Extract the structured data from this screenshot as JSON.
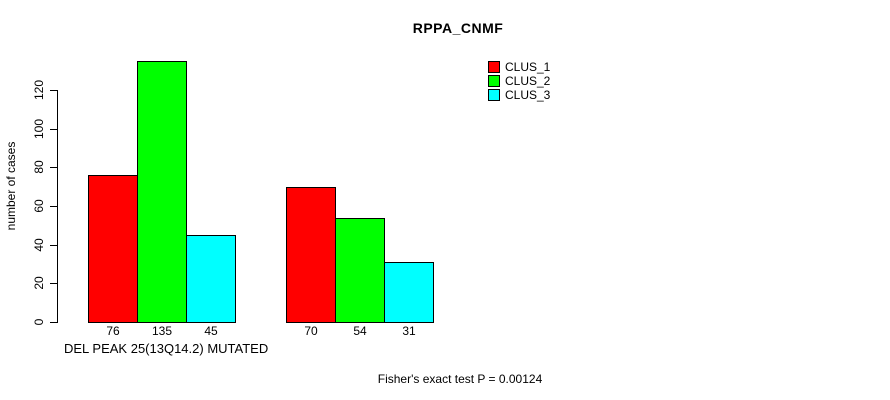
{
  "title": "RPPA_CNMF",
  "footer": "Fisher's exact test P = 0.00124",
  "chart_data": {
    "type": "bar",
    "title": "RPPA_CNMF",
    "xlabel": "DEL PEAK 25(13Q14.2) MUTATED",
    "ylabel": "number of cases",
    "yticks": [
      0,
      20,
      40,
      60,
      80,
      100,
      120
    ],
    "ylim": [
      0,
      140
    ],
    "grid": false,
    "legend_position": "top-right",
    "value_labels_shown": true,
    "num_groups": 2,
    "series": [
      {
        "name": "CLUS_1",
        "color": "#FF0000",
        "values": [
          76,
          70
        ]
      },
      {
        "name": "CLUS_2",
        "color": "#00FF00",
        "values": [
          135,
          54
        ]
      },
      {
        "name": "CLUS_3",
        "color": "#00FFFF",
        "values": [
          45,
          31
        ]
      }
    ]
  }
}
